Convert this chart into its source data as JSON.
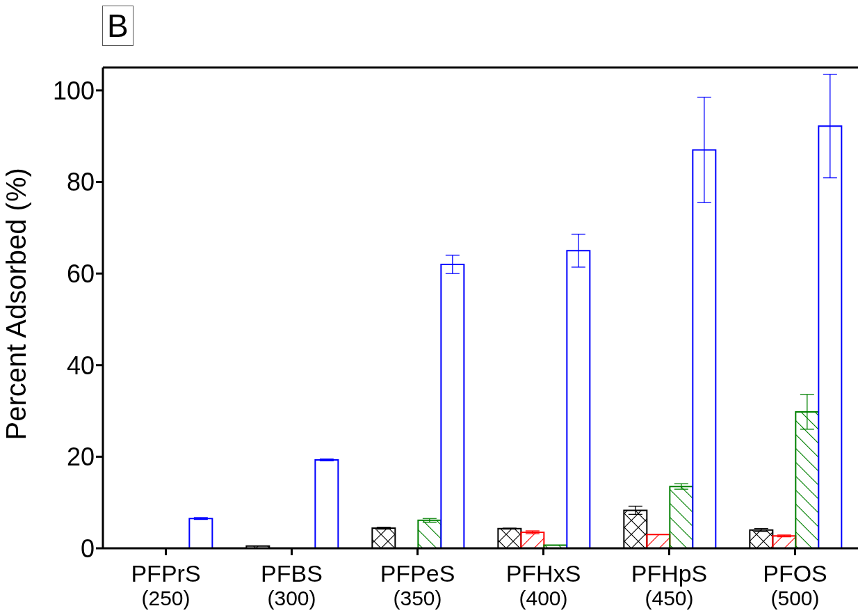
{
  "chart_data": {
    "type": "bar",
    "title": "B",
    "ylabel": "Percent Adsorbed (%)",
    "categories": [
      "PFPrS\n(250)",
      "PFBS\n(300)",
      "PFPeS\n(350)",
      "PFHxS\n(400)",
      "PFHpS\n(450)",
      "PFOS\n(500)"
    ],
    "series": [
      {
        "color": "#000000",
        "values": [
          0,
          0.5,
          4.4,
          4.3,
          8.3,
          4.0
        ],
        "errors": [
          null,
          null,
          0.2,
          0.1,
          0.9,
          0.3
        ]
      },
      {
        "color": "#ff0000",
        "values": [
          0,
          0,
          0,
          3.5,
          3.0,
          2.7
        ],
        "errors": [
          null,
          null,
          null,
          0.3,
          null,
          0.2
        ]
      },
      {
        "color": "#008000",
        "values": [
          0,
          0,
          6.1,
          0.7,
          13.5,
          29.8
        ],
        "errors": [
          null,
          null,
          0.4,
          null,
          0.6,
          3.8
        ]
      },
      {
        "color": "#0000ff",
        "values": [
          6.5,
          19.3,
          62,
          65,
          87,
          92.2
        ],
        "errors": [
          0.2,
          0.2,
          2,
          3.6,
          11.5,
          11.3
        ]
      }
    ],
    "ylim": [
      0,
      105
    ],
    "yticks": [
      0,
      20,
      40,
      60,
      80,
      100
    ],
    "grid": false,
    "legend": false
  }
}
